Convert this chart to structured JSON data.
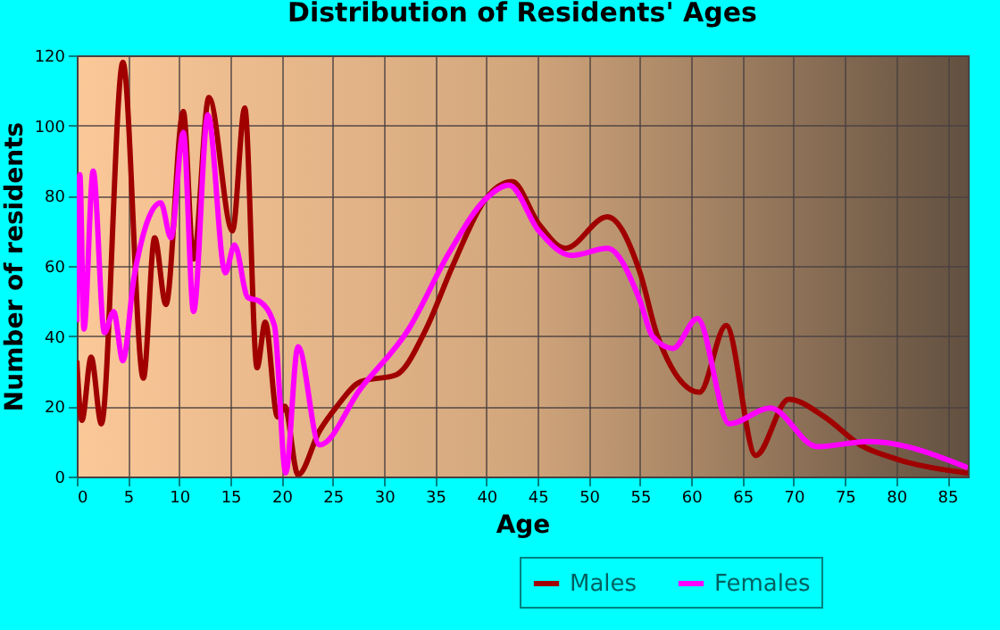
{
  "chart_data": {
    "type": "line",
    "title": "Distribution of Residents' Ages",
    "xlabel": "Age",
    "ylabel": "Number of residents",
    "xlim": [
      0,
      87
    ],
    "xticks": [
      0,
      5,
      10,
      15,
      20,
      25,
      30,
      35,
      40,
      45,
      50,
      55,
      60,
      65,
      70,
      75,
      80,
      85
    ],
    "ylim": [
      0,
      120
    ],
    "yticks": [
      0,
      20,
      40,
      60,
      80,
      100,
      120
    ],
    "grid": true,
    "legend": "bottom right",
    "marker": "none",
    "line_style": "solid",
    "series": [
      {
        "name": "Males",
        "color": "#a00000",
        "x": [
          0,
          0.5,
          1.4,
          2.4,
          4.5,
          6.5,
          7.6,
          8.7,
          10.4,
          11.4,
          12.9,
          15.2,
          16.4,
          17.6,
          18.4,
          19.6,
          20.3,
          21.6,
          23.7,
          25.4,
          27.7,
          31.2,
          34.1,
          36.7,
          39.9,
          42.5,
          45.1,
          47.7,
          51.8,
          55,
          56.7,
          60.8,
          63.4,
          66.3,
          69.5,
          73,
          76.5,
          80,
          87
        ],
        "values": [
          33,
          16,
          34,
          15,
          118,
          28,
          68,
          49,
          104,
          62,
          108,
          70,
          105,
          31,
          44,
          17,
          20,
          0.5,
          13,
          20,
          27,
          29,
          42,
          60,
          79,
          84,
          72,
          65,
          74,
          58,
          40,
          24,
          43,
          6,
          22,
          17,
          9,
          5,
          1
        ]
      },
      {
        "name": "Females",
        "color": "#ff00ff",
        "x": [
          0,
          0.3,
          0.7,
          1.6,
          2.7,
          3.6,
          4.5,
          5.6,
          8.2,
          9.2,
          10.4,
          11.4,
          12.8,
          14.5,
          15.4,
          16.7,
          17.8,
          19.3,
          20.4,
          21.6,
          23.7,
          27.7,
          32.4,
          36.4,
          39.9,
          42.2,
          45.1,
          48.3,
          51.8,
          55,
          56.2,
          58.2,
          60.6,
          63.7,
          67.7,
          72.3,
          77.3,
          87
        ],
        "values": [
          44,
          86,
          42,
          87,
          41,
          47,
          33,
          57,
          78,
          68,
          98,
          47,
          103,
          58,
          66,
          51,
          50,
          43,
          1,
          37,
          9,
          25,
          42,
          64,
          79,
          83,
          70,
          63,
          65,
          50,
          40,
          36.5,
          45,
          15,
          19.5,
          8.5,
          10,
          2.5
        ]
      }
    ]
  }
}
